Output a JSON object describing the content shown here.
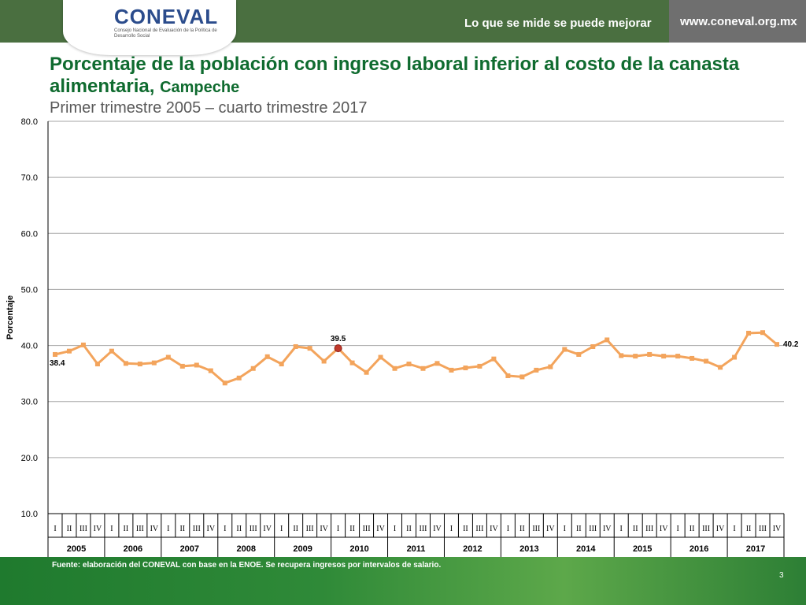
{
  "header": {
    "logo": "CONEVAL",
    "logo_subtitle": "Consejo Nacional de Evaluación de la Política de Desarrollo Social",
    "tagline": "Lo que se mide se puede mejorar",
    "url": "www.coneval.org.mx",
    "colors": {
      "bar": "#4a6f40",
      "url_bar": "#6f6f6f",
      "title": "#0f6b2f"
    }
  },
  "title_main": "Porcentaje de la población con ingreso laboral inferior al costo de la canasta alimentaria,",
  "title_state": "Campeche",
  "subtitle": "Primer trimestre 2005 – cuarto trimestre 2017",
  "footer": {
    "source": "Fuente: elaboración del CONEVAL con base en la ENOE. Se recupera ingresos por intervalos de salario.",
    "page": "3"
  },
  "chart_data": {
    "type": "line",
    "ylabel": "Porcentaje",
    "ylim": [
      10,
      80
    ],
    "yticks": [
      "10.0",
      "20.0",
      "30.0",
      "40.0",
      "50.0",
      "60.0",
      "70.0",
      "80.0"
    ],
    "grid": true,
    "quarters": [
      "I",
      "II",
      "III",
      "IV"
    ],
    "years": [
      "2005",
      "2006",
      "2007",
      "2008",
      "2009",
      "2010",
      "2011",
      "2012",
      "2013",
      "2014",
      "2015",
      "2016",
      "2017"
    ],
    "series": [
      {
        "color": "#f3a45c",
        "values": [
          38.4,
          39.0,
          40.1,
          36.7,
          39.0,
          36.8,
          36.7,
          36.9,
          37.9,
          36.3,
          36.5,
          35.5,
          33.3,
          34.2,
          35.9,
          38.0,
          36.7,
          39.8,
          39.5,
          37.2,
          39.5,
          36.9,
          35.2,
          37.9,
          35.9,
          36.7,
          35.9,
          36.8,
          35.6,
          36.0,
          36.3,
          37.6,
          34.6,
          34.4,
          35.6,
          36.2,
          39.3,
          38.4,
          39.8,
          41.0,
          38.2,
          38.1,
          38.4,
          38.1,
          38.1,
          37.7,
          37.2,
          36.1,
          37.9,
          42.2,
          42.3,
          40.2
        ]
      }
    ],
    "data_labels": [
      {
        "index": 0,
        "text": "38.4"
      },
      {
        "index": 20,
        "text": "39.5",
        "highlight_color": "#c0392b"
      },
      {
        "index": 51,
        "text": "40.2"
      }
    ]
  }
}
